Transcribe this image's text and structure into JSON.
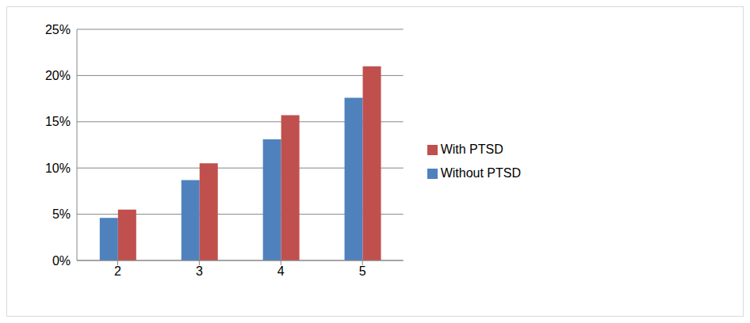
{
  "chart_data": {
    "type": "bar",
    "categories": [
      "2",
      "3",
      "4",
      "5"
    ],
    "series": [
      {
        "name": "Without PTSD",
        "color": "#4f81bd",
        "values": [
          4.6,
          8.7,
          13.1,
          17.6
        ]
      },
      {
        "name": "With PTSD",
        "color": "#c0504d",
        "values": [
          5.5,
          10.5,
          15.7,
          21.0
        ]
      }
    ],
    "ylim": [
      0,
      25
    ],
    "yticks": [
      {
        "value": 0,
        "label": "0%"
      },
      {
        "value": 5,
        "label": "5%"
      },
      {
        "value": 10,
        "label": "10%"
      },
      {
        "value": 15,
        "label": "15%"
      },
      {
        "value": 20,
        "label": "20%"
      },
      {
        "value": 25,
        "label": "25%"
      }
    ],
    "grid": true,
    "legend": "right"
  }
}
